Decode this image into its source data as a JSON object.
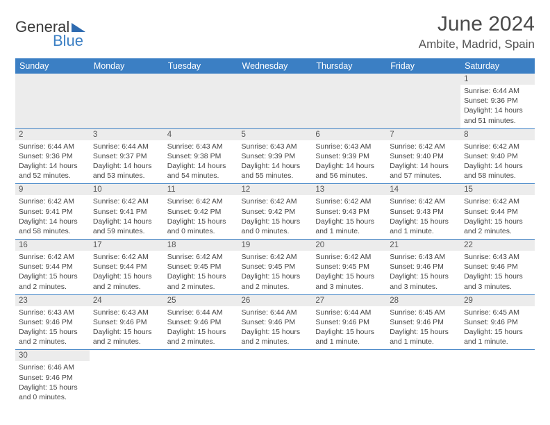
{
  "brand": {
    "part1": "General",
    "part2": "Blue"
  },
  "title": "June 2024",
  "location": "Ambite, Madrid, Spain",
  "colors": {
    "header_bg": "#3b7fc4",
    "header_text": "#ffffff",
    "daynum_bg": "#ececec",
    "border": "#3b7fc4",
    "text": "#444444"
  },
  "daysOfWeek": [
    "Sunday",
    "Monday",
    "Tuesday",
    "Wednesday",
    "Thursday",
    "Friday",
    "Saturday"
  ],
  "weeks": [
    [
      null,
      null,
      null,
      null,
      null,
      null,
      {
        "n": "1",
        "sunrise": "Sunrise: 6:44 AM",
        "sunset": "Sunset: 9:36 PM",
        "day": "Daylight: 14 hours and 51 minutes."
      }
    ],
    [
      {
        "n": "2",
        "sunrise": "Sunrise: 6:44 AM",
        "sunset": "Sunset: 9:36 PM",
        "day": "Daylight: 14 hours and 52 minutes."
      },
      {
        "n": "3",
        "sunrise": "Sunrise: 6:44 AM",
        "sunset": "Sunset: 9:37 PM",
        "day": "Daylight: 14 hours and 53 minutes."
      },
      {
        "n": "4",
        "sunrise": "Sunrise: 6:43 AM",
        "sunset": "Sunset: 9:38 PM",
        "day": "Daylight: 14 hours and 54 minutes."
      },
      {
        "n": "5",
        "sunrise": "Sunrise: 6:43 AM",
        "sunset": "Sunset: 9:39 PM",
        "day": "Daylight: 14 hours and 55 minutes."
      },
      {
        "n": "6",
        "sunrise": "Sunrise: 6:43 AM",
        "sunset": "Sunset: 9:39 PM",
        "day": "Daylight: 14 hours and 56 minutes."
      },
      {
        "n": "7",
        "sunrise": "Sunrise: 6:42 AM",
        "sunset": "Sunset: 9:40 PM",
        "day": "Daylight: 14 hours and 57 minutes."
      },
      {
        "n": "8",
        "sunrise": "Sunrise: 6:42 AM",
        "sunset": "Sunset: 9:40 PM",
        "day": "Daylight: 14 hours and 58 minutes."
      }
    ],
    [
      {
        "n": "9",
        "sunrise": "Sunrise: 6:42 AM",
        "sunset": "Sunset: 9:41 PM",
        "day": "Daylight: 14 hours and 58 minutes."
      },
      {
        "n": "10",
        "sunrise": "Sunrise: 6:42 AM",
        "sunset": "Sunset: 9:41 PM",
        "day": "Daylight: 14 hours and 59 minutes."
      },
      {
        "n": "11",
        "sunrise": "Sunrise: 6:42 AM",
        "sunset": "Sunset: 9:42 PM",
        "day": "Daylight: 15 hours and 0 minutes."
      },
      {
        "n": "12",
        "sunrise": "Sunrise: 6:42 AM",
        "sunset": "Sunset: 9:42 PM",
        "day": "Daylight: 15 hours and 0 minutes."
      },
      {
        "n": "13",
        "sunrise": "Sunrise: 6:42 AM",
        "sunset": "Sunset: 9:43 PM",
        "day": "Daylight: 15 hours and 1 minute."
      },
      {
        "n": "14",
        "sunrise": "Sunrise: 6:42 AM",
        "sunset": "Sunset: 9:43 PM",
        "day": "Daylight: 15 hours and 1 minute."
      },
      {
        "n": "15",
        "sunrise": "Sunrise: 6:42 AM",
        "sunset": "Sunset: 9:44 PM",
        "day": "Daylight: 15 hours and 2 minutes."
      }
    ],
    [
      {
        "n": "16",
        "sunrise": "Sunrise: 6:42 AM",
        "sunset": "Sunset: 9:44 PM",
        "day": "Daylight: 15 hours and 2 minutes."
      },
      {
        "n": "17",
        "sunrise": "Sunrise: 6:42 AM",
        "sunset": "Sunset: 9:44 PM",
        "day": "Daylight: 15 hours and 2 minutes."
      },
      {
        "n": "18",
        "sunrise": "Sunrise: 6:42 AM",
        "sunset": "Sunset: 9:45 PM",
        "day": "Daylight: 15 hours and 2 minutes."
      },
      {
        "n": "19",
        "sunrise": "Sunrise: 6:42 AM",
        "sunset": "Sunset: 9:45 PM",
        "day": "Daylight: 15 hours and 2 minutes."
      },
      {
        "n": "20",
        "sunrise": "Sunrise: 6:42 AM",
        "sunset": "Sunset: 9:45 PM",
        "day": "Daylight: 15 hours and 3 minutes."
      },
      {
        "n": "21",
        "sunrise": "Sunrise: 6:43 AM",
        "sunset": "Sunset: 9:46 PM",
        "day": "Daylight: 15 hours and 3 minutes."
      },
      {
        "n": "22",
        "sunrise": "Sunrise: 6:43 AM",
        "sunset": "Sunset: 9:46 PM",
        "day": "Daylight: 15 hours and 3 minutes."
      }
    ],
    [
      {
        "n": "23",
        "sunrise": "Sunrise: 6:43 AM",
        "sunset": "Sunset: 9:46 PM",
        "day": "Daylight: 15 hours and 2 minutes."
      },
      {
        "n": "24",
        "sunrise": "Sunrise: 6:43 AM",
        "sunset": "Sunset: 9:46 PM",
        "day": "Daylight: 15 hours and 2 minutes."
      },
      {
        "n": "25",
        "sunrise": "Sunrise: 6:44 AM",
        "sunset": "Sunset: 9:46 PM",
        "day": "Daylight: 15 hours and 2 minutes."
      },
      {
        "n": "26",
        "sunrise": "Sunrise: 6:44 AM",
        "sunset": "Sunset: 9:46 PM",
        "day": "Daylight: 15 hours and 2 minutes."
      },
      {
        "n": "27",
        "sunrise": "Sunrise: 6:44 AM",
        "sunset": "Sunset: 9:46 PM",
        "day": "Daylight: 15 hours and 1 minute."
      },
      {
        "n": "28",
        "sunrise": "Sunrise: 6:45 AM",
        "sunset": "Sunset: 9:46 PM",
        "day": "Daylight: 15 hours and 1 minute."
      },
      {
        "n": "29",
        "sunrise": "Sunrise: 6:45 AM",
        "sunset": "Sunset: 9:46 PM",
        "day": "Daylight: 15 hours and 1 minute."
      }
    ],
    [
      {
        "n": "30",
        "sunrise": "Sunrise: 6:46 AM",
        "sunset": "Sunset: 9:46 PM",
        "day": "Daylight: 15 hours and 0 minutes."
      },
      null,
      null,
      null,
      null,
      null,
      null
    ]
  ]
}
